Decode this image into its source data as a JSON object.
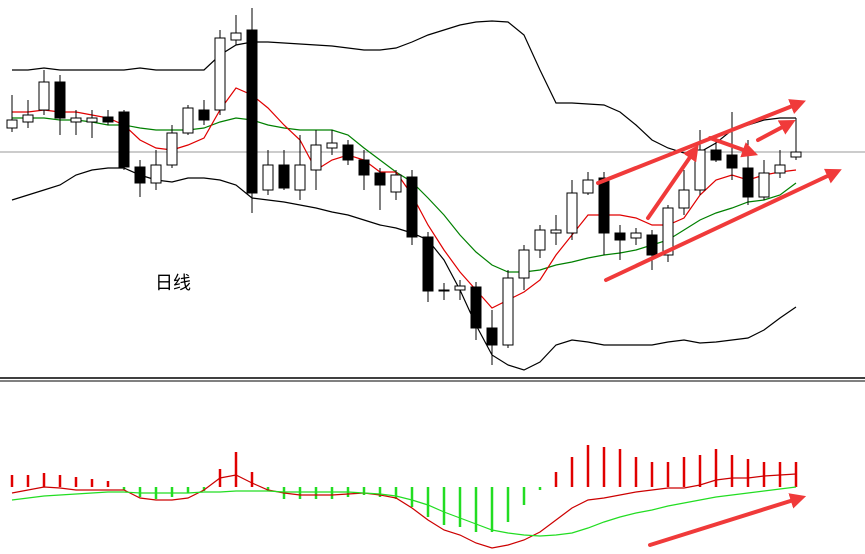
{
  "chart_data": [
    {
      "type": "candlestick",
      "annotation": "日线",
      "open": [
        272,
        278,
        290,
        318,
        278,
        278,
        283,
        288,
        233,
        217,
        235,
        267,
        290,
        290,
        360,
        370,
        210,
        235,
        210,
        230,
        252,
        255,
        240,
        227,
        208,
        223,
        163,
        109,
        110,
        113,
        72,
        55,
        122,
        150,
        167,
        167,
        207,
        222,
        167,
        162,
        165,
        145,
        192,
        210,
        250,
        245,
        232,
        203,
        227,
        243
      ],
      "high": [
        305,
        300,
        330,
        325,
        290,
        290,
        290,
        290,
        240,
        250,
        275,
        295,
        300,
        370,
        385,
        392,
        250,
        250,
        265,
        270,
        270,
        260,
        250,
        232,
        230,
        230,
        168,
        117,
        120,
        118,
        90,
        130,
        155,
        175,
        185,
        220,
        228,
        228,
        175,
        172,
        170,
        195,
        230,
        270,
        265,
        288,
        260,
        240,
        250,
        282
      ],
      "low": [
        268,
        272,
        285,
        265,
        265,
        262,
        275,
        230,
        203,
        210,
        232,
        265,
        275,
        285,
        355,
        187,
        205,
        210,
        200,
        210,
        245,
        235,
        210,
        190,
        200,
        155,
        98,
        100,
        100,
        60,
        35,
        52,
        110,
        142,
        155,
        160,
        205,
        145,
        140,
        155,
        130,
        138,
        185,
        205,
        238,
        220,
        195,
        200,
        222,
        240
      ],
      "close": [
        280,
        285,
        318,
        282,
        282,
        282,
        278,
        233,
        217,
        235,
        267,
        292,
        280,
        362,
        367,
        207,
        235,
        212,
        235,
        255,
        257,
        240,
        225,
        215,
        225,
        163,
        109,
        110,
        114,
        72,
        55,
        122,
        150,
        170,
        170,
        207,
        220,
        167,
        160,
        167,
        145,
        192,
        210,
        250,
        240,
        232,
        203,
        227,
        235,
        248
      ],
      "up_color": "#ffffff",
      "down_color": "#000000",
      "ylim": [
        20,
        400
      ],
      "series": [
        {
          "color": "#000000",
          "values": [
            330,
            330,
            332,
            330,
            330,
            330,
            330,
            330,
            332,
            330,
            330,
            330,
            330,
            345,
            355,
            358,
            358,
            357,
            356,
            355,
            354,
            352,
            350,
            350,
            352,
            358,
            365,
            370,
            375,
            378,
            379,
            378,
            365,
            330,
            297,
            297,
            296,
            295,
            288,
            275,
            260,
            252,
            247,
            248,
            257,
            270,
            275,
            280,
            282,
            282
          ]
        },
        {
          "color": "#000000",
          "values": [
            200,
            205,
            210,
            215,
            225,
            230,
            232,
            232,
            225,
            220,
            218,
            222,
            222,
            220,
            215,
            202,
            200,
            198,
            195,
            192,
            188,
            185,
            180,
            175,
            172,
            167,
            160,
            140,
            110,
            75,
            45,
            35,
            30,
            38,
            55,
            60,
            58,
            55,
            55,
            55,
            55,
            58,
            60,
            57,
            58,
            60,
            62,
            70,
            82,
            93
          ]
        },
        {
          "color": "#008000",
          "values": [
            282,
            282,
            282,
            280,
            280,
            278,
            275,
            275,
            272,
            270,
            270,
            270,
            272,
            278,
            282,
            280,
            275,
            272,
            270,
            270,
            270,
            265,
            252,
            240,
            228,
            218,
            202,
            185,
            165,
            148,
            135,
            128,
            128,
            130,
            135,
            138,
            142,
            145,
            147,
            150,
            155,
            160,
            170,
            180,
            187,
            192,
            198,
            200,
            205,
            217
          ]
        },
        {
          "color": "#e00000",
          "values": [
            288,
            288,
            290,
            288,
            288,
            285,
            282,
            275,
            260,
            252,
            250,
            255,
            262,
            290,
            312,
            305,
            292,
            275,
            260,
            230,
            240,
            245,
            240,
            228,
            228,
            205,
            175,
            150,
            128,
            110,
            92,
            100,
            108,
            120,
            145,
            165,
            185,
            185,
            185,
            182,
            175,
            175,
            182,
            205,
            220,
            225,
            220,
            225,
            228,
            230
          ]
        }
      ]
    },
    {
      "type": "macd",
      "ylim": [
        -67,
        67
      ],
      "up_color": "#e00000",
      "down_color": "#22dd22",
      "values": [
        12,
        12,
        14,
        12,
        10,
        8,
        6,
        -3,
        -10,
        -12,
        -10,
        -6,
        -4,
        18,
        35,
        15,
        -4,
        -12,
        -12,
        -12,
        -12,
        -10,
        -8,
        -10,
        -12,
        -20,
        -30,
        -38,
        -40,
        -45,
        -45,
        -35,
        -18,
        -3,
        15,
        30,
        42,
        40,
        38,
        30,
        25,
        25,
        30,
        32,
        38,
        32,
        28,
        25,
        25,
        25
      ],
      "series": [
        {
          "color": "#cc0000",
          "values": [
            -6,
            -3,
            0,
            -1,
            -3,
            -3,
            -3,
            -3,
            -11,
            -13,
            -13,
            -11,
            -3,
            9,
            12,
            4,
            -3,
            -6,
            -8,
            -8,
            -8,
            -7,
            -6,
            -8,
            -11,
            -21,
            -33,
            -43,
            -48,
            -56,
            -61,
            -58,
            -53,
            -45,
            -33,
            -21,
            -13,
            -11,
            -8,
            -5,
            -3,
            -1,
            -1,
            2,
            7,
            9,
            9,
            11,
            12,
            13
          ]
        },
        {
          "color": "#22dd22",
          "values": [
            -13,
            -11,
            -9,
            -8,
            -7,
            -6,
            -5,
            -5,
            -6,
            -6,
            -6,
            -6,
            -5,
            -5,
            -4,
            -4,
            -4,
            -5,
            -5,
            -5,
            -5,
            -5,
            -6,
            -7,
            -9,
            -13,
            -18,
            -25,
            -31,
            -37,
            -43,
            -46,
            -48,
            -49,
            -48,
            -46,
            -41,
            -35,
            -30,
            -26,
            -23,
            -19,
            -16,
            -13,
            -10,
            -8,
            -6,
            -4,
            -2,
            0
          ]
        }
      ]
    }
  ]
}
